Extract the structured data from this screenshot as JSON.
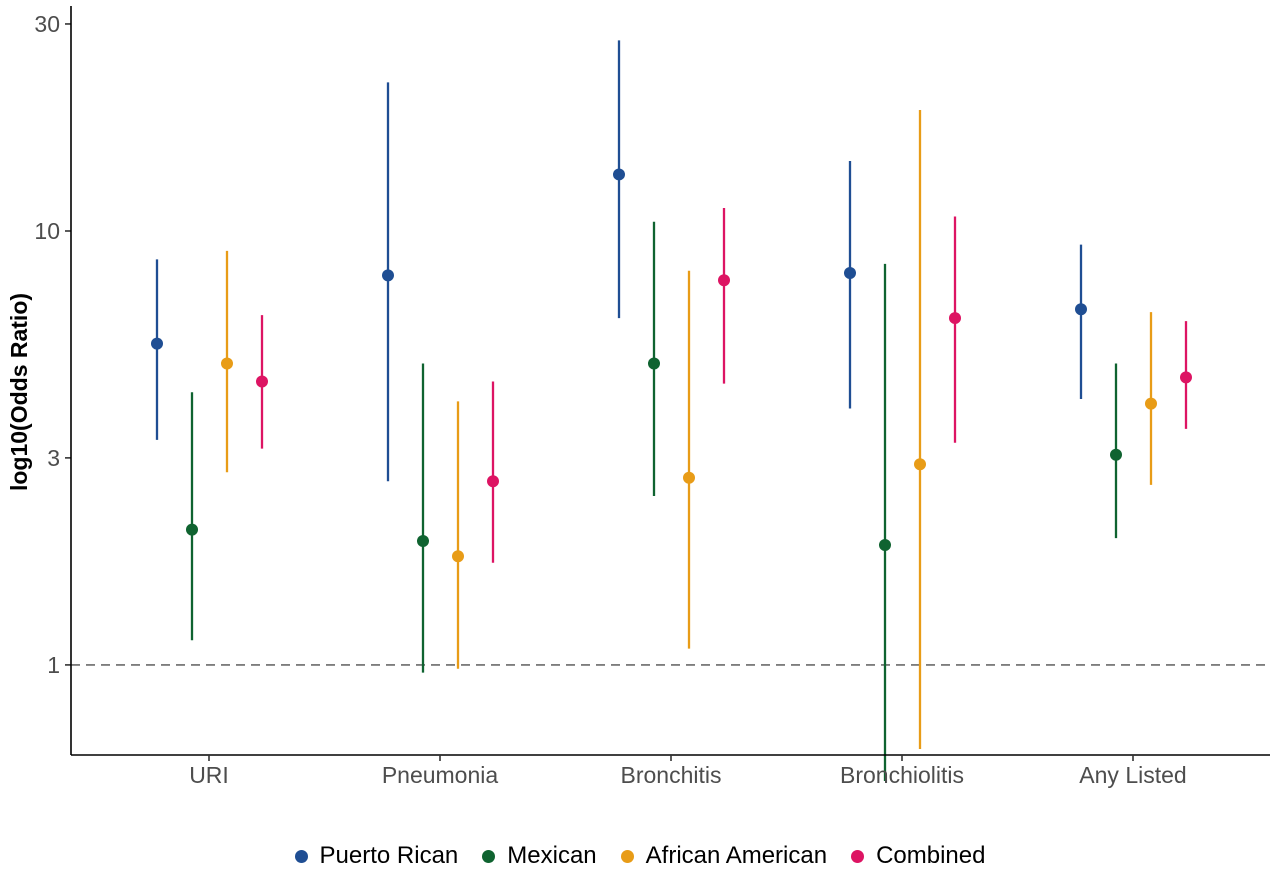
{
  "chart_data": {
    "type": "scatter",
    "subtype": "point-range (odds ratios with confidence intervals)",
    "ylabel": "log10(Odds Ratio)",
    "xlabel": "",
    "y_scale": "log10",
    "ylim": [
      0.62,
      33
    ],
    "y_ticks": [
      1,
      3,
      10,
      30
    ],
    "y_tick_labels": [
      "1",
      "3",
      "10",
      "30"
    ],
    "reference_line": {
      "y": 1,
      "style": "dashed"
    },
    "categories": [
      "URI",
      "Pneumonia",
      "Bronchitis",
      "Bronchiolitis",
      "Any Listed"
    ],
    "grid": false,
    "legend_position": "bottom",
    "series": [
      {
        "name": "Puerto Rican",
        "color": "#1f4e93",
        "values": [
          5.5,
          7.9,
          13.5,
          8.0,
          6.6
        ],
        "lower": [
          3.3,
          2.65,
          6.3,
          3.9,
          4.1
        ],
        "upper": [
          8.6,
          22.0,
          27.5,
          14.5,
          9.3
        ]
      },
      {
        "name": "Mexican",
        "color": "#0f6330",
        "values": [
          2.05,
          1.93,
          4.95,
          1.89,
          3.05
        ],
        "lower": [
          1.14,
          0.96,
          2.45,
          0.54,
          1.96
        ],
        "upper": [
          4.25,
          4.95,
          10.5,
          8.4,
          4.95
        ]
      },
      {
        "name": "African American",
        "color": "#e89c17",
        "values": [
          4.95,
          1.78,
          2.7,
          2.9,
          4.0
        ],
        "lower": [
          2.78,
          0.98,
          1.09,
          0.64,
          2.6
        ],
        "upper": [
          9.0,
          4.05,
          8.1,
          19.0,
          6.5
        ]
      },
      {
        "name": "Combined",
        "color": "#dd1463",
        "values": [
          4.5,
          2.65,
          7.7,
          6.3,
          4.6
        ],
        "lower": [
          3.15,
          1.72,
          4.45,
          3.25,
          3.5
        ],
        "upper": [
          6.4,
          4.5,
          11.3,
          10.8,
          6.2
        ]
      }
    ]
  }
}
